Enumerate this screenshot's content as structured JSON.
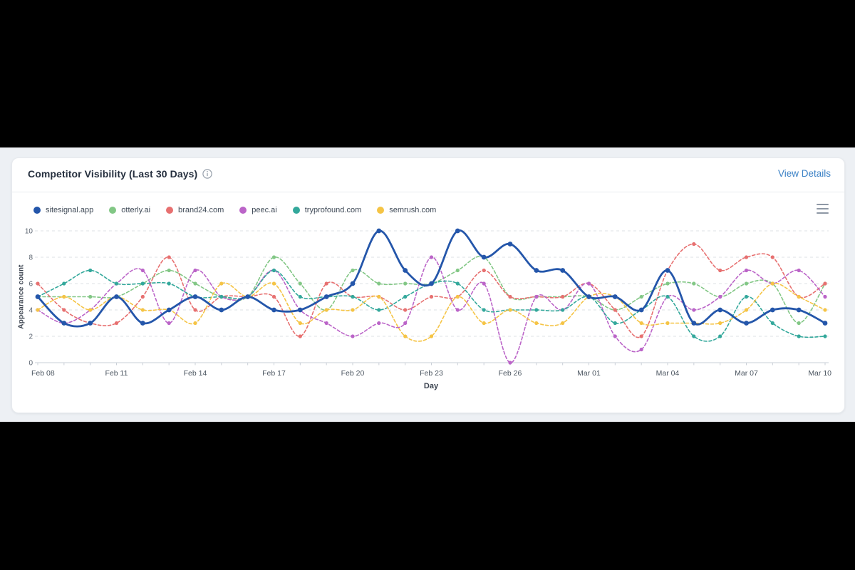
{
  "page": {
    "background": "#000000",
    "canvas_background": "#edf0f4",
    "card_background": "#ffffff",
    "link_color": "#3c82c6"
  },
  "card": {
    "title": "Competitor Visibility (Last 30 Days)",
    "info_icon": "info-circle-icon",
    "view_details_label": "View Details",
    "menu_icon": "hamburger-menu-icon"
  },
  "chart_data": {
    "type": "line",
    "title": "Competitor Visibility (Last 30 Days)",
    "xlabel": "Day",
    "ylabel": "Appearance count",
    "ylim": [
      0,
      10
    ],
    "yticks": [
      0,
      2,
      4,
      6,
      8,
      10
    ],
    "grid": "horizontal-dashed",
    "legend_position": "top-left",
    "x": [
      "Feb 08",
      "Feb 09",
      "Feb 10",
      "Feb 11",
      "Feb 12",
      "Feb 13",
      "Feb 14",
      "Feb 15",
      "Feb 16",
      "Feb 17",
      "Feb 18",
      "Feb 19",
      "Feb 20",
      "Feb 21",
      "Feb 22",
      "Feb 23",
      "Feb 24",
      "Feb 25",
      "Feb 26",
      "Feb 27",
      "Feb 28",
      "Mar 01",
      "Mar 02",
      "Mar 03",
      "Mar 04",
      "Mar 05",
      "Mar 06",
      "Mar 07",
      "Mar 08",
      "Mar 09",
      "Mar 10"
    ],
    "xtick_every": 3,
    "series": [
      {
        "name": "sitesignal.app",
        "color": "#2456aa",
        "style": "solid-thick",
        "values": [
          5,
          3,
          3,
          5,
          3,
          4,
          5,
          4,
          5,
          4,
          4,
          5,
          6,
          10,
          7,
          6,
          10,
          8,
          9,
          7,
          7,
          5,
          5,
          4,
          7,
          3,
          4,
          3,
          4,
          4,
          3
        ]
      },
      {
        "name": "otterly.ai",
        "color": "#82c785",
        "style": "dashed",
        "values": [
          5,
          5,
          5,
          5,
          6,
          7,
          6,
          5,
          5,
          8,
          6,
          4,
          7,
          6,
          6,
          6,
          7,
          8,
          5,
          5,
          5,
          5,
          4,
          5,
          6,
          6,
          5,
          6,
          6,
          3,
          6
        ]
      },
      {
        "name": "brand24.com",
        "color": "#e77070",
        "style": "dashed",
        "values": [
          6,
          4,
          3,
          3,
          5,
          8,
          4,
          5,
          5,
          5,
          2,
          6,
          5,
          5,
          4,
          5,
          5,
          7,
          5,
          5,
          5,
          6,
          4,
          2,
          7,
          9,
          7,
          8,
          8,
          5,
          6
        ]
      },
      {
        "name": "peec.ai",
        "color": "#bb64c8",
        "style": "dashed",
        "values": [
          4,
          3,
          4,
          6,
          7,
          3,
          7,
          5,
          5,
          7,
          4,
          3,
          2,
          3,
          3,
          8,
          4,
          6,
          0,
          5,
          4,
          6,
          2,
          1,
          5,
          4,
          5,
          7,
          6,
          7,
          5
        ]
      },
      {
        "name": "tryprofound.com",
        "color": "#33a89b",
        "style": "dashed",
        "values": [
          5,
          6,
          7,
          6,
          6,
          6,
          5,
          5,
          5,
          7,
          5,
          5,
          5,
          4,
          5,
          6,
          6,
          4,
          4,
          4,
          4,
          5,
          3,
          4,
          5,
          2,
          2,
          5,
          3,
          2,
          2
        ]
      },
      {
        "name": "semrush.com",
        "color": "#f5c445",
        "style": "dashed",
        "values": [
          4,
          5,
          4,
          5,
          4,
          4,
          3,
          6,
          5,
          6,
          3,
          4,
          4,
          5,
          2,
          2,
          5,
          3,
          4,
          3,
          3,
          5,
          5,
          3,
          3,
          3,
          3,
          4,
          6,
          5,
          4
        ]
      }
    ]
  }
}
